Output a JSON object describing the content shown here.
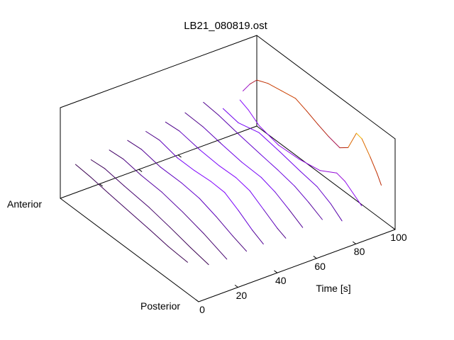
{
  "colors": {
    "background": "#ffffff",
    "box": "#000000",
    "text": "#000000",
    "palette_low": "#39004f",
    "palette_mid": "#8a2be2",
    "palette_high": "#f8db00"
  },
  "chart_data": {
    "type": "line3d-waterfall",
    "title": "LB21_080819.ost",
    "grid": false,
    "legend": false,
    "time_axis": {
      "label": "Time [s]",
      "range": [
        0,
        100
      ],
      "ticks": [
        0,
        20,
        40,
        60,
        80,
        100
      ]
    },
    "position_axis": {
      "start_label": "Anterior",
      "end_label": "Posterior",
      "range": [
        0,
        1
      ]
    },
    "height_axis": {
      "ticks_visible": false,
      "units": "arbitrary"
    },
    "palette": "pm3d traditional (black-purple-violet-red-orange-yellow)",
    "series": [
      {
        "time": 0,
        "points": [
          [
            0.11,
            64,
            0.05
          ],
          [
            0.22,
            62,
            0.05
          ],
          [
            0.35,
            58,
            0.06
          ],
          [
            0.5,
            54,
            0.06
          ],
          [
            0.65,
            50,
            0.06
          ],
          [
            0.78,
            46,
            0.05
          ],
          [
            0.92,
            44,
            0.05
          ]
        ]
      },
      {
        "time": 10,
        "points": [
          [
            0.08,
            56,
            0.05
          ],
          [
            0.18,
            58,
            0.06
          ],
          [
            0.32,
            54,
            0.07
          ],
          [
            0.5,
            50,
            0.07
          ],
          [
            0.65,
            44,
            0.06
          ],
          [
            0.8,
            37,
            0.05
          ],
          [
            0.93,
            32,
            0.05
          ]
        ]
      },
      {
        "time": 20,
        "points": [
          [
            0.07,
            58,
            0.06
          ],
          [
            0.17,
            60,
            0.07
          ],
          [
            0.3,
            56,
            0.1
          ],
          [
            0.45,
            54,
            0.12
          ],
          [
            0.6,
            48,
            0.1
          ],
          [
            0.75,
            40,
            0.08
          ],
          [
            0.92,
            28,
            0.06
          ]
        ]
      },
      {
        "time": 30,
        "points": [
          [
            0.06,
            60,
            0.07
          ],
          [
            0.16,
            62,
            0.08
          ],
          [
            0.3,
            57,
            0.12
          ],
          [
            0.45,
            57,
            0.15
          ],
          [
            0.58,
            54,
            0.15
          ],
          [
            0.7,
            46,
            0.12
          ],
          [
            0.82,
            36,
            0.09
          ],
          [
            0.92,
            29,
            0.07
          ]
        ]
      },
      {
        "time": 40,
        "points": [
          [
            0.05,
            61,
            0.08
          ],
          [
            0.15,
            63,
            0.1
          ],
          [
            0.28,
            57,
            0.17
          ],
          [
            0.4,
            57,
            0.25
          ],
          [
            0.52,
            59,
            0.28
          ],
          [
            0.62,
            58,
            0.26
          ],
          [
            0.72,
            47,
            0.2
          ],
          [
            0.82,
            34,
            0.12
          ],
          [
            0.9,
            26,
            0.08
          ]
        ]
      },
      {
        "time": 50,
        "points": [
          [
            0.05,
            64,
            0.08
          ],
          [
            0.15,
            66,
            0.1
          ],
          [
            0.3,
            61,
            0.18
          ],
          [
            0.44,
            59,
            0.25
          ],
          [
            0.56,
            60,
            0.27
          ],
          [
            0.66,
            56,
            0.24
          ],
          [
            0.76,
            44,
            0.16
          ],
          [
            0.86,
            32,
            0.1
          ],
          [
            0.92,
            27,
            0.08
          ]
        ]
      },
      {
        "time": 60,
        "points": [
          [
            0.05,
            67,
            0.08
          ],
          [
            0.18,
            66,
            0.1
          ],
          [
            0.32,
            61,
            0.16
          ],
          [
            0.46,
            57,
            0.2
          ],
          [
            0.6,
            56,
            0.22
          ],
          [
            0.7,
            50,
            0.18
          ],
          [
            0.8,
            40,
            0.12
          ],
          [
            0.9,
            29,
            0.08
          ]
        ]
      },
      {
        "time": 70,
        "points": [
          [
            0.04,
            70,
            0.09
          ],
          [
            0.15,
            68,
            0.1
          ],
          [
            0.3,
            62,
            0.14
          ],
          [
            0.45,
            57,
            0.16
          ],
          [
            0.58,
            53,
            0.18
          ],
          [
            0.7,
            48,
            0.16
          ],
          [
            0.8,
            40,
            0.12
          ],
          [
            0.9,
            30,
            0.09
          ]
        ]
      },
      {
        "time": 80,
        "points": [
          [
            0.04,
            51,
            0.18
          ],
          [
            0.15,
            47,
            0.2
          ],
          [
            0.3,
            55,
            0.22
          ],
          [
            0.45,
            50,
            0.2
          ],
          [
            0.6,
            44,
            0.18
          ],
          [
            0.72,
            40,
            0.16
          ],
          [
            0.82,
            30,
            0.13
          ],
          [
            0.9,
            18,
            0.1
          ]
        ]
      },
      {
        "time": 90,
        "points": [
          [
            0.02,
            50,
            0.25
          ],
          [
            0.08,
            45,
            0.28
          ],
          [
            0.16,
            34,
            0.3
          ],
          [
            0.3,
            27,
            0.3
          ],
          [
            0.45,
            29,
            0.32
          ],
          [
            0.6,
            35,
            0.33
          ],
          [
            0.72,
            49,
            0.35
          ],
          [
            0.78,
            46,
            0.33
          ],
          [
            0.9,
            29,
            0.28
          ]
        ]
      },
      {
        "time": 100,
        "points": [
          [
            -0.1,
            35,
            0.3
          ],
          [
            -0.05,
            52,
            0.42
          ],
          [
            0.0,
            65,
            0.52
          ],
          [
            0.08,
            72,
            0.6
          ],
          [
            0.18,
            76,
            0.64
          ],
          [
            0.28,
            80,
            0.63
          ],
          [
            0.36,
            74,
            0.58
          ],
          [
            0.44,
            67,
            0.52
          ],
          [
            0.52,
            61,
            0.46
          ],
          [
            0.6,
            57,
            0.44
          ],
          [
            0.66,
            66,
            0.55
          ],
          [
            0.72,
            95,
            0.93
          ],
          [
            0.76,
            93,
            0.85
          ],
          [
            0.82,
            76,
            0.65
          ],
          [
            0.87,
            60,
            0.55
          ],
          [
            0.9,
            48,
            0.5
          ]
        ]
      }
    ]
  }
}
